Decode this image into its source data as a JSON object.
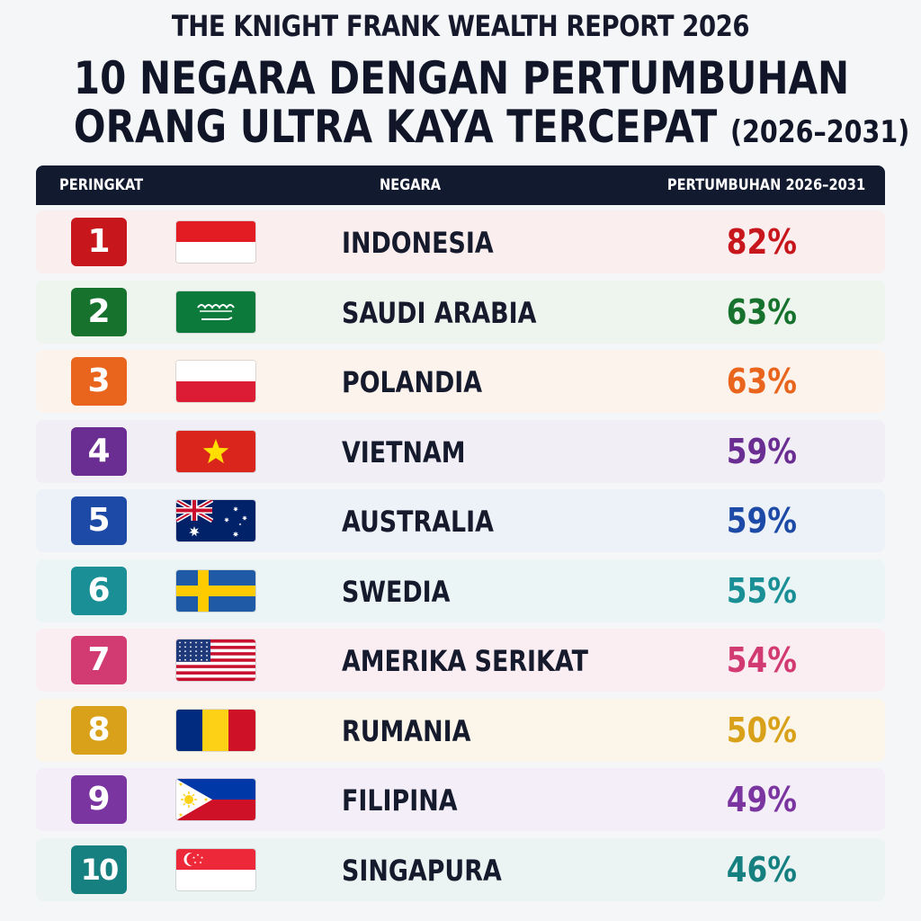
{
  "header": {
    "report_title": "THE KNIGHT FRANK WEALTH REPORT 2026",
    "headline_line1": "10 NEGARA DENGAN PERTUMBUHAN",
    "headline_line2": "ORANG ULTRA KAYA TERCEPAT",
    "headline_period": "(2026–2031)"
  },
  "table": {
    "col_rank": "PERINGKAT",
    "col_country": "NEGARA",
    "col_growth": "PERTUMBUHAN 2026–2031"
  },
  "chart_data": {
    "type": "table",
    "title": "10 NEGARA DENGAN PERTUMBUHAN ORANG ULTRA KAYA TERCEPAT (2026–2031)",
    "columns": [
      "PERINGKAT",
      "NEGARA",
      "PERTUMBUHAN 2026–2031"
    ],
    "rows": [
      {
        "rank": "1",
        "country": "INDONESIA",
        "growth": "82%",
        "value": 82,
        "flag": "indonesia-flag-icon",
        "color": "#c8161d",
        "bg": "#fbeeee"
      },
      {
        "rank": "2",
        "country": "SAUDI ARABIA",
        "growth": "63%",
        "value": 63,
        "flag": "saudi-arabia-flag-icon",
        "color": "#17722d",
        "bg": "#eef5ef"
      },
      {
        "rank": "3",
        "country": "POLANDIA",
        "growth": "63%",
        "value": 63,
        "flag": "poland-flag-icon",
        "color": "#e9641c",
        "bg": "#fcf3ec"
      },
      {
        "rank": "4",
        "country": "VIETNAM",
        "growth": "59%",
        "value": 59,
        "flag": "vietnam-flag-icon",
        "color": "#6a2d91",
        "bg": "#f2eef6"
      },
      {
        "rank": "5",
        "country": "AUSTRALIA",
        "growth": "59%",
        "value": 59,
        "flag": "australia-flag-icon",
        "color": "#1c4aa6",
        "bg": "#edf1f8"
      },
      {
        "rank": "6",
        "country": "SWEDIA",
        "growth": "55%",
        "value": 55,
        "flag": "sweden-flag-icon",
        "color": "#1a8f95",
        "bg": "#ebf5f6"
      },
      {
        "rank": "7",
        "country": "AMERIKA SERIKAT",
        "growth": "54%",
        "value": 54,
        "flag": "usa-flag-icon",
        "color": "#d23a72",
        "bg": "#fbeef3"
      },
      {
        "rank": "8",
        "country": "RUMANIA",
        "growth": "50%",
        "value": 50,
        "flag": "romania-flag-icon",
        "color": "#d9a11a",
        "bg": "#fbf6e9"
      },
      {
        "rank": "9",
        "country": "FILIPINA",
        "growth": "49%",
        "value": 49,
        "flag": "philippines-flag-icon",
        "color": "#7b35a0",
        "bg": "#f3eef7"
      },
      {
        "rank": "10",
        "country": "SINGAPURA",
        "growth": "46%",
        "value": 46,
        "flag": "singapore-flag-icon",
        "color": "#167f80",
        "bg": "#ebf4f3"
      }
    ]
  }
}
